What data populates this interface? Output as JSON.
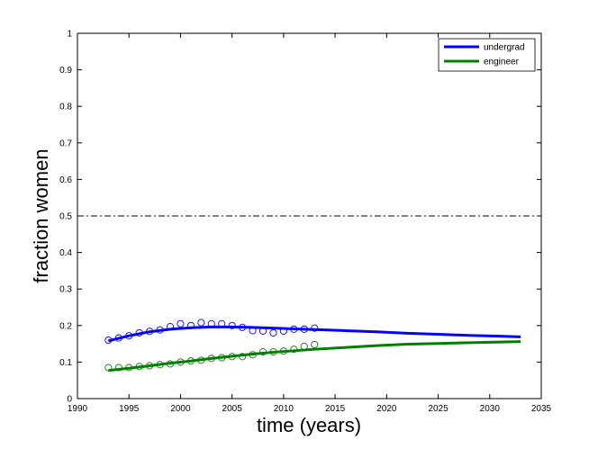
{
  "chart_data": {
    "type": "line",
    "title": "",
    "xlabel": "time (years)",
    "ylabel": "fraction women",
    "xlim": [
      1990,
      2035
    ],
    "ylim": [
      0,
      1
    ],
    "xticks": [
      1990,
      1995,
      2000,
      2005,
      2010,
      2015,
      2020,
      2025,
      2030,
      2035
    ],
    "yticks": [
      0,
      0.1,
      0.2,
      0.3,
      0.4,
      0.5,
      0.6,
      0.7,
      0.8,
      0.9,
      1
    ],
    "grid": false,
    "legend_position": "top-right",
    "reference_line": {
      "y": 0.5,
      "style": "dash-dot",
      "color": "#000000"
    },
    "series": [
      {
        "name": "undergrad",
        "color": "#0000ff",
        "fit_x": [
          1993,
          1995,
          1997,
          1999,
          2001,
          2003,
          2005,
          2007,
          2009,
          2011,
          2013,
          2016,
          2019,
          2022,
          2025,
          2028,
          2031,
          2033
        ],
        "fit_y": [
          0.158,
          0.172,
          0.183,
          0.19,
          0.194,
          0.196,
          0.196,
          0.195,
          0.193,
          0.191,
          0.189,
          0.186,
          0.183,
          0.179,
          0.176,
          0.173,
          0.171,
          0.169
        ],
        "x": [
          1993,
          1994,
          1995,
          1996,
          1997,
          1998,
          1999,
          2000,
          2001,
          2002,
          2003,
          2004,
          2005,
          2006,
          2007,
          2008,
          2009,
          2010,
          2011,
          2012,
          2013
        ],
        "y": [
          0.16,
          0.166,
          0.172,
          0.18,
          0.184,
          0.188,
          0.197,
          0.205,
          0.2,
          0.208,
          0.205,
          0.205,
          0.2,
          0.195,
          0.186,
          0.185,
          0.18,
          0.185,
          0.19,
          0.19,
          0.193
        ]
      },
      {
        "name": "engineer",
        "color": "#007f00",
        "fit_x": [
          1993,
          1995,
          1997,
          1999,
          2001,
          2003,
          2005,
          2007,
          2009,
          2011,
          2013,
          2016,
          2019,
          2022,
          2025,
          2028,
          2031,
          2033
        ],
        "fit_y": [
          0.077,
          0.083,
          0.09,
          0.097,
          0.103,
          0.11,
          0.116,
          0.122,
          0.127,
          0.131,
          0.135,
          0.14,
          0.145,
          0.149,
          0.151,
          0.153,
          0.155,
          0.156
        ],
        "x": [
          1993,
          1994,
          1995,
          1996,
          1997,
          1998,
          1999,
          2000,
          2001,
          2002,
          2003,
          2004,
          2005,
          2006,
          2007,
          2008,
          2009,
          2010,
          2011,
          2012,
          2013
        ],
        "y": [
          0.085,
          0.085,
          0.085,
          0.088,
          0.09,
          0.093,
          0.095,
          0.1,
          0.103,
          0.105,
          0.11,
          0.112,
          0.115,
          0.115,
          0.12,
          0.128,
          0.128,
          0.13,
          0.135,
          0.143,
          0.148
        ]
      }
    ]
  }
}
